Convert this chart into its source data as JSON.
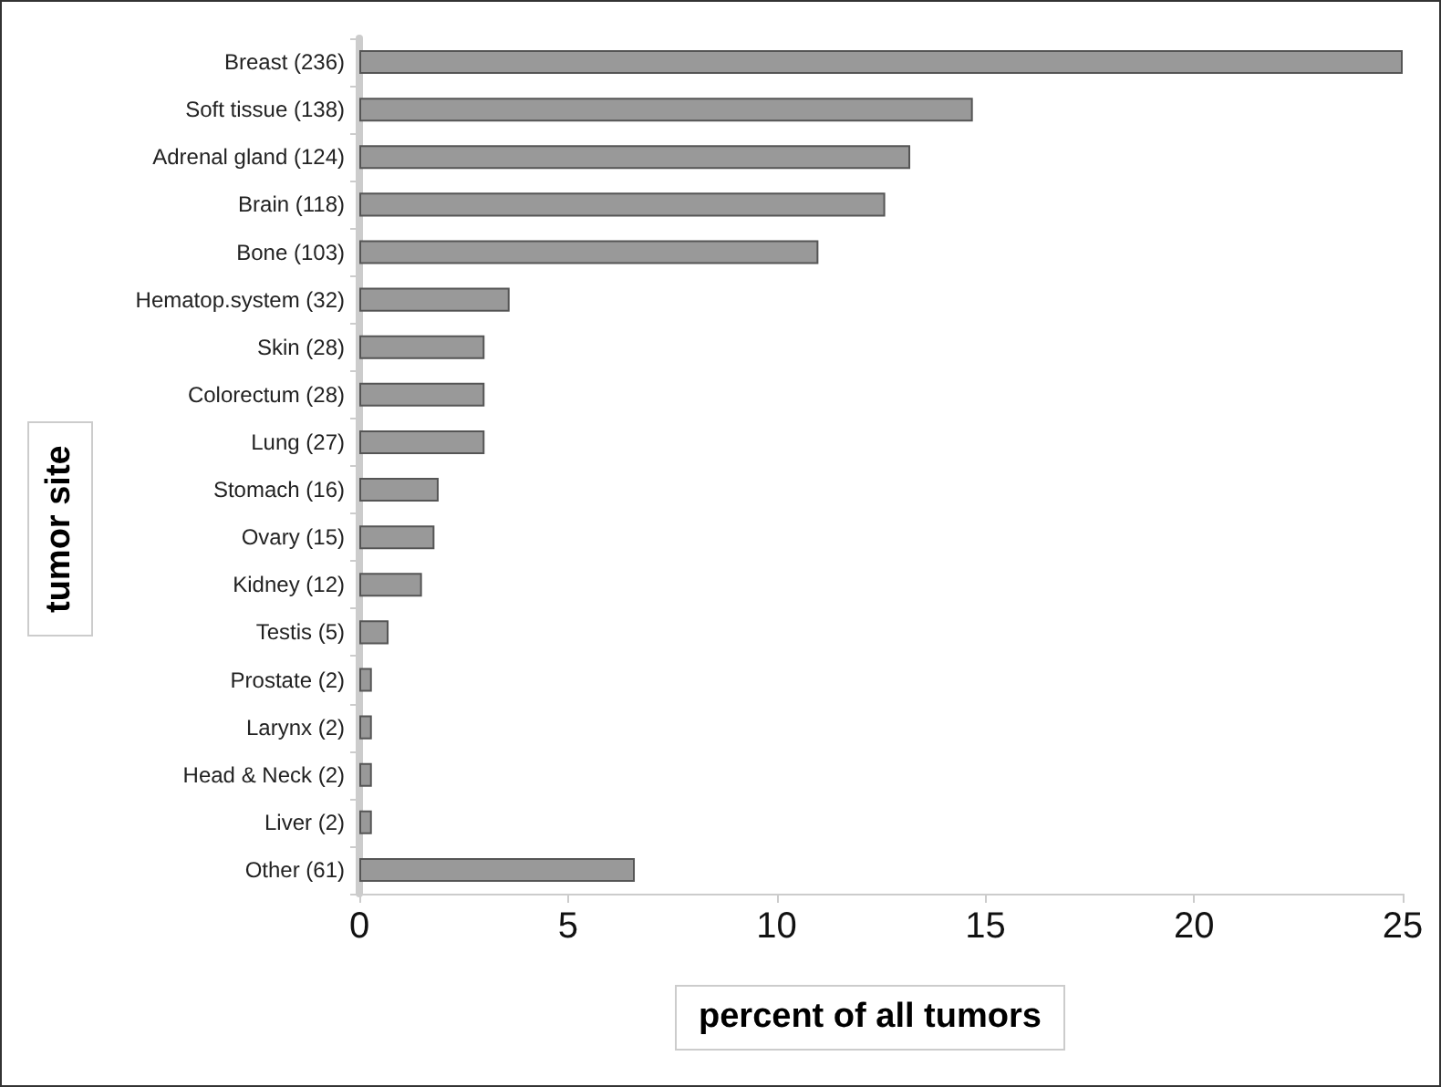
{
  "chart_data": {
    "type": "bar",
    "orientation": "horizontal",
    "xlabel": "percent of all tumors",
    "ylabel": "tumor site",
    "categories": [
      "Breast (236)",
      "Soft tissue (138)",
      "Adrenal gland (124)",
      "Brain (118)",
      "Bone (103)",
      "Hematop.system (32)",
      "Skin (28)",
      "Colorectum (28)",
      "Lung (27)",
      "Stomach (16)",
      "Ovary (15)",
      "Kidney (12)",
      "Testis (5)",
      "Prostate (2)",
      "Larynx (2)",
      "Head & Neck (2)",
      "Liver (2)",
      "Other (61)"
    ],
    "values": [
      25,
      14.7,
      13.2,
      12.6,
      11.0,
      3.6,
      3.0,
      3.0,
      3.0,
      1.9,
      1.8,
      1.5,
      0.7,
      0.3,
      0.3,
      0.3,
      0.3,
      6.6
    ],
    "color": "#999999",
    "xlim": [
      0,
      25
    ],
    "xticks": [
      0,
      5,
      10,
      15,
      20,
      25
    ],
    "grid": false
  }
}
